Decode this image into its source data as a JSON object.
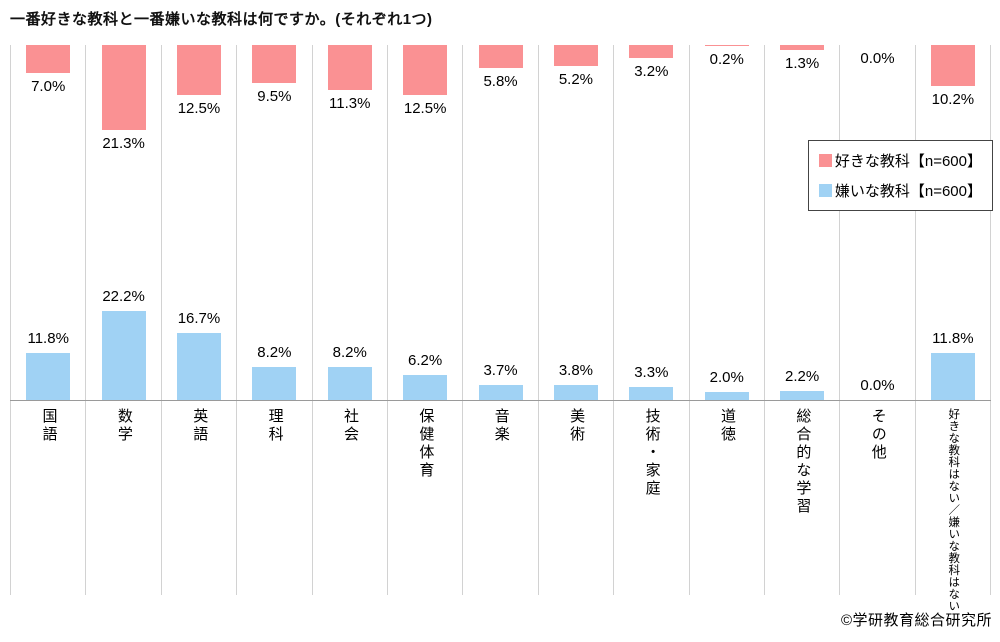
{
  "title": "一番好きな教科と一番嫌いな教科は何ですか。(それぞれ1つ)",
  "footer": "©学研教育総合研究所",
  "chart_data": {
    "type": "bar",
    "orientation": "vertical",
    "layout_note": "series[0] bars hang down from the top edge with value labels below them; series[1] bars rise from the bottom baseline with value labels above them",
    "legend_position": "right",
    "grid": "vertical column separators only",
    "value_suffix": "%",
    "categories": [
      "国語",
      "数学",
      "英語",
      "理科",
      "社会",
      "保健体育",
      "音楽",
      "美術",
      "技術・家庭",
      "道徳",
      "総合的な学習",
      "その他",
      "好きな教科はない／嫌いな教科はない"
    ],
    "series": [
      {
        "name": "好きな教科【n=600】",
        "color": "#fa9193",
        "values": [
          7.0,
          21.3,
          12.5,
          9.5,
          11.3,
          12.5,
          5.8,
          5.2,
          3.2,
          0.2,
          1.3,
          0.0,
          10.2
        ]
      },
      {
        "name": "嫌いな教科【n=600】",
        "color": "#a0d2f4",
        "values": [
          11.8,
          22.2,
          16.7,
          8.2,
          8.2,
          6.2,
          3.7,
          3.8,
          3.3,
          2.0,
          2.2,
          0.0,
          11.8
        ]
      }
    ]
  }
}
